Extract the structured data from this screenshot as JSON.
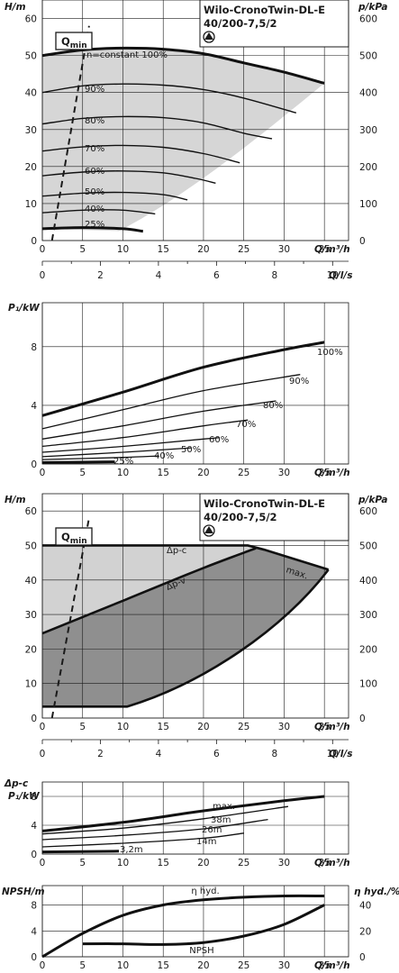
{
  "title": {
    "line1": "Wilo-CronoTwin-DL-E",
    "line2": "40/200-7,5/2"
  },
  "chart_data": [
    {
      "id": "h_const",
      "type": "line",
      "xlabel": "Q/m³/h",
      "ylabel": "H/m",
      "y2label": "p/kPa",
      "xlim": [
        0,
        38
      ],
      "ylim": [
        0,
        65
      ],
      "y2lim": [
        0,
        650
      ],
      "xticks": [
        "0",
        "5",
        "10",
        "15",
        "20",
        "25",
        "30",
        "35"
      ],
      "yticks": [
        "0",
        "10",
        "20",
        "30",
        "40",
        "50",
        "60"
      ],
      "y2ticks": [
        "0",
        "100",
        "200",
        "300",
        "400",
        "500",
        "600"
      ],
      "secondary_x": {
        "label": "Q/l/s",
        "ticks": [
          "0",
          "2",
          "4",
          "6",
          "8",
          "10"
        ],
        "lim": [
          0,
          10.55
        ]
      },
      "qmin_label": "Q",
      "qmin_sub": "min",
      "series": [
        {
          "name": "n=constant 100%",
          "x": [
            0,
            5,
            10,
            15,
            20,
            25,
            30,
            35
          ],
          "y": [
            50,
            51.5,
            52,
            51.7,
            50.5,
            48,
            45.5,
            42.5
          ]
        },
        {
          "name": "90%",
          "x": [
            0,
            5,
            10,
            15,
            20,
            25,
            31.5
          ],
          "y": [
            40,
            41.8,
            42.3,
            42,
            40.8,
            38.5,
            34.5
          ]
        },
        {
          "name": "80%",
          "x": [
            0,
            5,
            10,
            15,
            20,
            25,
            28.5
          ],
          "y": [
            31.5,
            33,
            33.5,
            33.2,
            31.8,
            29,
            27.5
          ]
        },
        {
          "name": "70%",
          "x": [
            0,
            5,
            10,
            15,
            20,
            24.5
          ],
          "y": [
            24.2,
            25.3,
            25.7,
            25.2,
            23.5,
            21
          ]
        },
        {
          "name": "60%",
          "x": [
            0,
            5,
            10,
            15,
            19,
            21.5
          ],
          "y": [
            17.5,
            18.5,
            18.8,
            18.3,
            16.8,
            15.5
          ]
        },
        {
          "name": "50%",
          "x": [
            0,
            5,
            10,
            15,
            18
          ],
          "y": [
            12,
            12.8,
            13,
            12.4,
            11
          ]
        },
        {
          "name": "40%",
          "x": [
            0,
            5,
            10,
            14
          ],
          "y": [
            7.5,
            8.2,
            8.2,
            7.2
          ]
        },
        {
          "name": "25%",
          "x": [
            0,
            5,
            10,
            12.5
          ],
          "y": [
            3.2,
            3.5,
            3.2,
            2.5
          ]
        }
      ],
      "qmin_line": {
        "x": [
          1.2,
          5.8
        ],
        "y": [
          0,
          58
        ]
      }
    },
    {
      "id": "p1_const",
      "type": "line",
      "xlabel": "Q/m³/h",
      "ylabel": "P₁/kW",
      "xlim": [
        0,
        38
      ],
      "ylim": [
        0,
        11
      ],
      "xticks": [
        "0",
        "5",
        "10",
        "15",
        "20",
        "25",
        "30",
        "35"
      ],
      "yticks": [
        "0",
        "4",
        "8"
      ],
      "series": [
        {
          "name": "100%",
          "x": [
            0,
            10,
            20,
            30,
            35
          ],
          "y": [
            3.3,
            4.9,
            6.6,
            7.8,
            8.3
          ]
        },
        {
          "name": "90%",
          "x": [
            0,
            10,
            20,
            32
          ],
          "y": [
            2.4,
            3.7,
            5,
            6.1
          ]
        },
        {
          "name": "80%",
          "x": [
            0,
            10,
            20,
            29
          ],
          "y": [
            1.7,
            2.6,
            3.6,
            4.3
          ]
        },
        {
          "name": "70%",
          "x": [
            0,
            10,
            20,
            25.5
          ],
          "y": [
            1.2,
            1.8,
            2.6,
            3
          ]
        },
        {
          "name": "60%",
          "x": [
            0,
            10,
            20,
            22
          ],
          "y": [
            0.8,
            1.2,
            1.7,
            1.8
          ]
        },
        {
          "name": "50%",
          "x": [
            0,
            10,
            18.5
          ],
          "y": [
            0.5,
            0.8,
            1.1
          ]
        },
        {
          "name": "40%",
          "x": [
            0,
            10,
            14.5
          ],
          "y": [
            0.3,
            0.45,
            0.55
          ]
        },
        {
          "name": "25%",
          "x": [
            0,
            9
          ],
          "y": [
            0.1,
            0.15
          ]
        }
      ]
    },
    {
      "id": "h_dp",
      "type": "area",
      "xlabel": "Q/m³/h",
      "ylabel": "H/m",
      "y2label": "p/kPa",
      "xlim": [
        0,
        38
      ],
      "ylim": [
        0,
        65
      ],
      "y2lim": [
        0,
        650
      ],
      "xticks": [
        "0",
        "5",
        "10",
        "15",
        "20",
        "25",
        "30",
        "35"
      ],
      "yticks": [
        "0",
        "10",
        "20",
        "30",
        "40",
        "50",
        "60"
      ],
      "y2ticks": [
        "0",
        "100",
        "200",
        "300",
        "400",
        "500",
        "600"
      ],
      "secondary_x": {
        "label": "Q/l/s",
        "ticks": [
          "0",
          "2",
          "4",
          "6",
          "8",
          "10"
        ],
        "lim": [
          0,
          10.55
        ]
      },
      "qmin_label": "Q",
      "qmin_sub": "min",
      "labels": {
        "dpc": "Δp-c",
        "dpv": "Δp-v",
        "max": "max."
      },
      "dpc_x": [
        0,
        25.5,
        27.5,
        35.5,
        10.5,
        0
      ],
      "dpc_y": [
        50,
        50,
        48.8,
        43,
        3.3,
        3.3
      ],
      "dpv_x": [
        0,
        10,
        20,
        26.5
      ],
      "dpv_y": [
        24.5,
        34,
        43.5,
        49.2
      ],
      "max_x": [
        27,
        31,
        35.5
      ],
      "max_y": [
        48.8,
        46.5,
        43
      ],
      "lower_x": [
        10.5,
        18,
        24,
        29,
        35.5
      ],
      "lower_y": [
        3.3,
        10,
        19,
        29,
        43
      ],
      "qmin_line": {
        "x": [
          1.2,
          5.8
        ],
        "y": [
          0,
          58
        ]
      }
    },
    {
      "id": "p1_dp",
      "type": "line",
      "xlabel": "Q/m³/h",
      "ylabel": "P₁/kW",
      "ylabel_top": "Δp-c",
      "xlim": [
        0,
        38
      ],
      "ylim": [
        0,
        10
      ],
      "xticks": [
        "0",
        "5",
        "10",
        "15",
        "20",
        "25",
        "30",
        "35"
      ],
      "yticks": [
        "0",
        "4",
        "8"
      ],
      "series": [
        {
          "name": "max.",
          "x": [
            0,
            10,
            20,
            30,
            35
          ],
          "y": [
            3.2,
            4.4,
            6,
            7.4,
            8
          ]
        },
        {
          "name": "38m",
          "x": [
            0,
            10,
            20,
            30.5
          ],
          "y": [
            2.8,
            3.6,
            4.9,
            6.6
          ]
        },
        {
          "name": "26m",
          "x": [
            0,
            10,
            20,
            28
          ],
          "y": [
            2,
            2.6,
            3.5,
            4.8
          ]
        },
        {
          "name": "14m",
          "x": [
            0,
            10,
            20,
            25
          ],
          "y": [
            1,
            1.5,
            2.2,
            2.9
          ]
        },
        {
          "name": "3,2m",
          "x": [
            0,
            9.5
          ],
          "y": [
            0.3,
            0.4
          ]
        }
      ]
    },
    {
      "id": "npsh_eta",
      "type": "line",
      "xlabel": "Q/m³/h",
      "ylabel": "NPSH/m",
      "y2label": "η hyd./%",
      "xlim": [
        0,
        38
      ],
      "ylim": [
        0,
        11
      ],
      "y2lim": [
        0,
        55
      ],
      "xticks": [
        "0",
        "5",
        "10",
        "15",
        "20",
        "25",
        "30",
        "35"
      ],
      "yticks": [
        "0",
        "4",
        "8"
      ],
      "y2ticks": [
        "0",
        "20",
        "40"
      ],
      "series": [
        {
          "name": "η hyd.",
          "axis": "right",
          "x": [
            0,
            5,
            10,
            15,
            20,
            25,
            30,
            35
          ],
          "y": [
            0,
            18,
            32,
            40,
            44,
            46,
            47,
            47
          ]
        },
        {
          "name": "NPSH",
          "axis": "left",
          "x": [
            5,
            10,
            15,
            20,
            25,
            30,
            35
          ],
          "y": [
            2,
            2,
            1.9,
            2.2,
            3.2,
            5,
            8
          ]
        }
      ]
    }
  ]
}
